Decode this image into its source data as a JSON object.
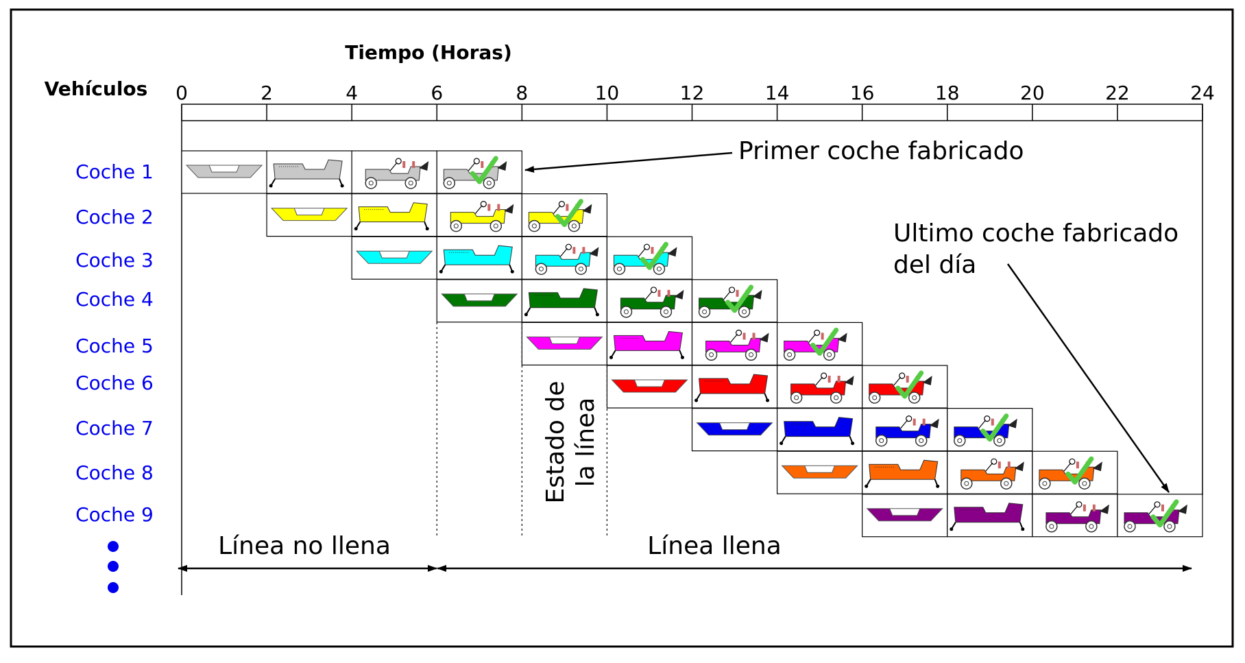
{
  "title": "Tiempo (Horas)",
  "vehicles_label": "Vehículos",
  "time_ticks": [
    "0",
    "2",
    "4",
    "6",
    "8",
    "10",
    "12",
    "14",
    "16",
    "18",
    "20",
    "22",
    "24"
  ],
  "time_range": [
    0,
    24
  ],
  "stage_hours": 2,
  "cars": [
    {
      "label": "Coche 1",
      "start": 0,
      "color": "#c8c8c8"
    },
    {
      "label": "Coche 2",
      "start": 2,
      "color": "#ffff00"
    },
    {
      "label": "Coche 3",
      "start": 4,
      "color": "#00ffff"
    },
    {
      "label": "Coche 4",
      "start": 6,
      "color": "#007700"
    },
    {
      "label": "Coche 5",
      "start": 8,
      "color": "#ff00ff"
    },
    {
      "label": "Coche 6",
      "start": 10,
      "color": "#ff0000"
    },
    {
      "label": "Coche 7",
      "start": 12,
      "color": "#0000ee"
    },
    {
      "label": "Coche 8",
      "start": 14,
      "color": "#ff6600"
    },
    {
      "label": "Coche 9",
      "start": 16,
      "color": "#880088"
    }
  ],
  "stages": [
    "chasis",
    "carroceria",
    "ruedas",
    "terminado"
  ],
  "stage_icons": [
    "chassis-icon",
    "body-icon",
    "car-icon",
    "finished-car-icon"
  ],
  "annotations": {
    "first_car": "Primer coche fabricado",
    "last_car_line1": "Ultimo coche fabricado",
    "last_car_line2": "del día",
    "line_state_line1": "Estado de",
    "line_state_line2": "la línea",
    "line_not_full": "Línea no llena",
    "line_full": "Línea llena"
  },
  "colors": {
    "car_label": "#0000ee",
    "check": "#55cc44",
    "frame": "#000000"
  }
}
